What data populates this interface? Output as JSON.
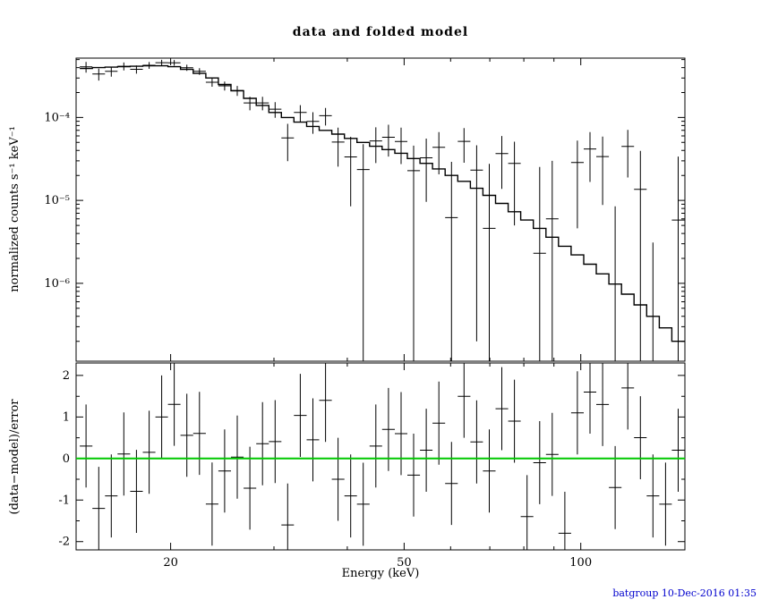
{
  "title": "data and folded model",
  "footer": {
    "text": "batgroup 10-Dec-2016 01:35",
    "color": "#0000cd"
  },
  "colors": {
    "foreground": "#000000",
    "zero_line": "#00c800",
    "background": "#ffffff"
  },
  "chart_data": {
    "type": "scatter",
    "title": "data and folded model",
    "xlabel": "Energy (keV)",
    "xscale": "log",
    "xlim": [
      13.8,
      150.5
    ],
    "xtick_values": [
      20,
      50,
      100
    ],
    "xtick_labels": [
      "20",
      "50",
      "100"
    ],
    "legend": "none",
    "grid": false,
    "top_panel": {
      "ylabel": "normalized counts s⁻¹ keV⁻¹",
      "yscale": "log",
      "ylim": [
        1.15e-07,
        0.00052
      ],
      "ytick_values": [
        0.0001,
        1e-05,
        1e-06
      ],
      "ytick_labels": [
        "10⁻⁴",
        "10⁻⁵",
        "10⁻⁶"
      ]
    },
    "bottom_panel": {
      "ylabel": "(data−model)/error",
      "yscale": "linear",
      "ylim": [
        -2.2,
        2.3
      ],
      "ytick_values": [
        2,
        1,
        0,
        -1,
        -2
      ],
      "ytick_labels": [
        "2",
        "1",
        "0",
        "-1",
        "-2"
      ],
      "residual_bar_halflength": 1,
      "zero_line_color": "#00c800"
    },
    "series": {
      "edges_keV": [
        14.0,
        14.71,
        15.46,
        16.24,
        17.06,
        17.93,
        18.84,
        19.79,
        20.79,
        21.85,
        22.96,
        24.12,
        25.34,
        26.63,
        27.98,
        29.4,
        30.89,
        32.45,
        34.1,
        35.83,
        37.64,
        39.55,
        41.55,
        43.66,
        45.87,
        48.2,
        50.64,
        53.21,
        55.9,
        58.74,
        61.71,
        64.84,
        68.13,
        71.58,
        75.21,
        79.02,
        83.03,
        87.23,
        91.65,
        96.29,
        101.17,
        106.29,
        111.68,
        117.34,
        123.28,
        129.53,
        136.09,
        142.99,
        150.24
      ],
      "model": [
        0.00039,
        0.0004,
        0.000405,
        0.00041,
        0.000415,
        0.00042,
        0.00042,
        0.00041,
        0.00038,
        0.00034,
        0.0003,
        0.00025,
        0.00021,
        0.00017,
        0.00014,
        0.000115,
        0.0001,
        8.8e-05,
        7.8e-05,
        7e-05,
        6.3e-05,
        5.6e-05,
        5e-05,
        4.5e-05,
        4.1e-05,
        3.7e-05,
        3.2e-05,
        2.8e-05,
        2.4e-05,
        2e-05,
        1.7e-05,
        1.4e-05,
        1.15e-05,
        9.2e-06,
        7.3e-06,
        5.8e-06,
        4.6e-06,
        3.6e-06,
        2.8e-06,
        2.2e-06,
        1.7e-06,
        1.3e-06,
        9.8e-07,
        7.4e-07,
        5.5e-07,
        4e-07,
        2.9e-07,
        2e-07
      ],
      "counts": [
        0.000408,
        0.000334,
        0.00036,
        0.000415,
        0.000381,
        0.000426,
        0.000458,
        0.000457,
        0.000399,
        0.00036,
        0.000266,
        0.000241,
        0.000211,
        0.00015,
        0.00015,
        0.000126,
        5.68e-05,
        0.000115,
        8.97e-05,
        0.000105,
        5.05e-05,
        3.35e-05,
        2.36e-05,
        5.22e-05,
        5.78e-05,
        5.14e-05,
        2.28e-05,
        3.26e-05,
        4.36e-05,
        6.2e-06,
        5.15e-05,
        2.32e-05,
        4.6e-06,
        3.68e-05,
        2.8e-05,
        -2.64e-05,
        2.3e-06,
        6e-06,
        -4.04e-05,
        2.86e-05,
        4.17e-05,
        3.38e-05,
        -1.65e-05,
        4.49e-05,
        1.36e-05,
        -2.39e-05,
        -2.94e-05,
        5.8e-06
      ],
      "errors": [
        6e-05,
        5.5e-05,
        5e-05,
        4.6e-05,
        4.3e-05,
        4e-05,
        3.8e-05,
        3.6e-05,
        3.4e-05,
        3.3e-05,
        3.1e-05,
        3e-05,
        2.9e-05,
        2.8e-05,
        2.8e-05,
        2.7e-05,
        2.7e-05,
        2.6e-05,
        2.6e-05,
        2.5e-05,
        2.5e-05,
        2.5e-05,
        2.4e-05,
        2.4e-05,
        2.4e-05,
        2.4e-05,
        2.3e-05,
        2.3e-05,
        2.3e-05,
        2.3e-05,
        2.3e-05,
        2.3e-05,
        2.3e-05,
        2.3e-05,
        2.3e-05,
        2.3e-05,
        2.3e-05,
        2.4e-05,
        2.4e-05,
        2.4e-05,
        2.5e-05,
        2.5e-05,
        2.5e-05,
        2.6e-05,
        2.6e-05,
        2.7e-05,
        2.7e-05,
        2.8e-05
      ]
    }
  }
}
